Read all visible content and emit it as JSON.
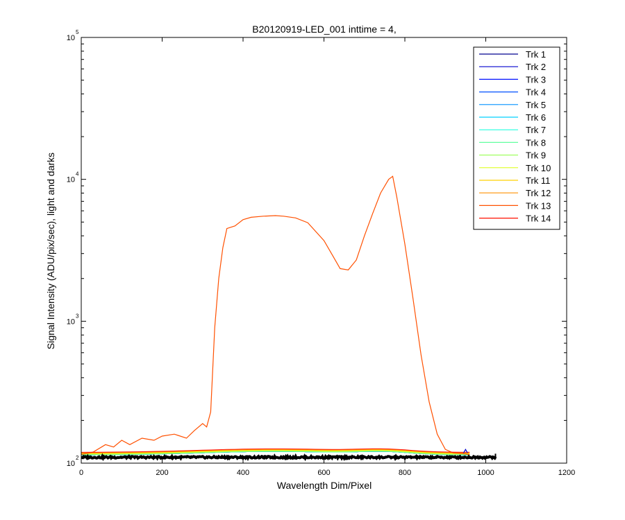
{
  "figure": {
    "background": "#ffffff",
    "axes_color": "#000000"
  },
  "chart_data": {
    "type": "line",
    "title": "B20120919-LED_001 inttime = 4,",
    "xlabel": "Wavelength Dim/Pixel",
    "ylabel": "Signal Intensity (ADU/pix/sec), light and darks",
    "xlim": [
      0,
      1200
    ],
    "ylim": [
      100,
      100000
    ],
    "yscale": "log",
    "x_ticks": [
      0,
      200,
      400,
      600,
      800,
      1000,
      1200
    ],
    "y_ticks": [
      {
        "value": 100,
        "base": "10",
        "exp": "2"
      },
      {
        "value": 1000,
        "base": "10",
        "exp": "3"
      },
      {
        "value": 10000,
        "base": "10",
        "exp": "4"
      },
      {
        "value": 100000,
        "base": "10",
        "exp": "5"
      }
    ],
    "grid": false,
    "legend_position": "top-right",
    "series": [
      {
        "name": "Trk 1",
        "color": "#00008F",
        "baseline": 114
      },
      {
        "name": "Trk 2",
        "color": "#0000CF",
        "baseline": 114
      },
      {
        "name": "Trk 3",
        "color": "#0010FF",
        "baseline": 114
      },
      {
        "name": "Trk 4",
        "color": "#0050FF",
        "baseline": 114
      },
      {
        "name": "Trk 5",
        "color": "#0090FF",
        "baseline": 114
      },
      {
        "name": "Trk 6",
        "color": "#00D0FF",
        "baseline": 114
      },
      {
        "name": "Trk 7",
        "color": "#20FFDF",
        "baseline": 114
      },
      {
        "name": "Trk 8",
        "color": "#60FF9F",
        "baseline": 114
      },
      {
        "name": "Trk 9",
        "color": "#9FFF60",
        "baseline": 115
      },
      {
        "name": "Trk 10",
        "color": "#DFFF20",
        "baseline": 116
      },
      {
        "name": "Trk 11",
        "color": "#FFD000",
        "baseline": 117
      },
      {
        "name": "Trk 12",
        "color": "#FF9000",
        "baseline": 118
      },
      {
        "name": "Trk 13",
        "color": "#FF5000",
        "baseline": 119,
        "x": [
          0,
          30,
          60,
          80,
          100,
          120,
          150,
          180,
          200,
          230,
          260,
          280,
          300,
          310,
          320,
          330,
          340,
          350,
          360,
          380,
          400,
          420,
          450,
          480,
          500,
          530,
          560,
          600,
          620,
          640,
          660,
          680,
          700,
          720,
          740,
          760,
          770,
          780,
          800,
          820,
          840,
          860,
          880,
          900,
          920,
          940,
          960
        ],
        "y": [
          115,
          120,
          135,
          130,
          145,
          135,
          150,
          145,
          155,
          160,
          150,
          170,
          190,
          180,
          230,
          900,
          2000,
          3300,
          4500,
          4700,
          5200,
          5400,
          5500,
          5550,
          5500,
          5350,
          4950,
          3700,
          2950,
          2350,
          2300,
          2700,
          4000,
          5700,
          8000,
          10000,
          10500,
          7500,
          3500,
          1450,
          580,
          270,
          160,
          125,
          118,
          117,
          115
        ]
      },
      {
        "name": "Trk 14",
        "color": "#FF1000",
        "baseline": 119
      }
    ],
    "dark_series": {
      "color": "#000000",
      "x_range": [
        0,
        1024
      ],
      "value": 110
    },
    "markers": [
      {
        "series": "Trk 2",
        "x": 950,
        "y": 125
      }
    ]
  }
}
